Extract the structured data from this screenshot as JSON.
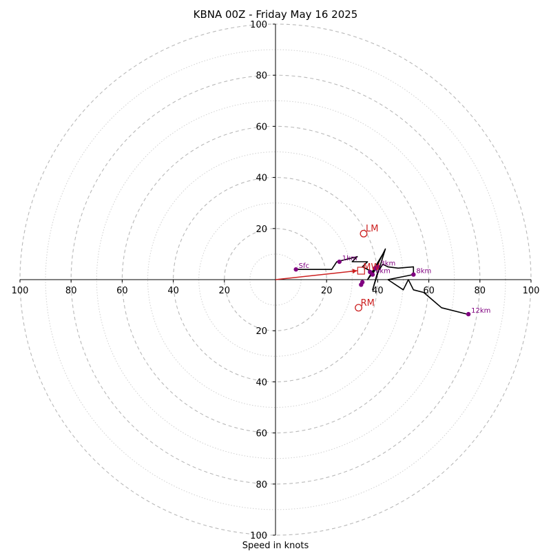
{
  "chart_data": {
    "type": "hodograph",
    "title": "KBNA 00Z - Friday May 16 2025",
    "xlabel": "Speed in knots",
    "range": 100,
    "ring_major_step": 20,
    "ring_minor_step": 10,
    "tick_values": [
      20,
      40,
      60,
      80,
      100
    ],
    "grid": true,
    "hodograph_line": {
      "color": "#000000",
      "points": [
        [
          8,
          4
        ],
        [
          22,
          4
        ],
        [
          24,
          7
        ],
        [
          32,
          9
        ],
        [
          30,
          7
        ],
        [
          36,
          7
        ],
        [
          34,
          5
        ],
        [
          38,
          3
        ],
        [
          40,
          5
        ],
        [
          36,
          0
        ],
        [
          42,
          10
        ],
        [
          38,
          2
        ],
        [
          43,
          12
        ],
        [
          38,
          -4
        ],
        [
          40,
          3
        ],
        [
          42,
          6
        ],
        [
          44,
          5
        ],
        [
          48,
          4.5
        ],
        [
          54,
          5
        ],
        [
          54,
          2
        ],
        [
          44,
          0
        ],
        [
          50,
          -4
        ],
        [
          52,
          0
        ],
        [
          54,
          -4
        ],
        [
          58,
          -5
        ],
        [
          65,
          -11
        ],
        [
          75,
          -13.5
        ]
      ]
    },
    "height_markers": {
      "color": "#800080",
      "points": [
        {
          "label": "Sfc",
          "x": 8,
          "y": 4
        },
        {
          "label": "1km",
          "x": 25,
          "y": 7
        },
        {
          "label": "3km",
          "x": 40,
          "y": 5
        },
        {
          "label": "",
          "x": 39,
          "y": 4.5
        },
        {
          "label": "",
          "x": 37,
          "y": 3
        },
        {
          "label": "6km",
          "x": 38,
          "y": 2
        },
        {
          "label": "",
          "x": 34,
          "y": -1
        },
        {
          "label": "",
          "x": 33.5,
          "y": -2
        },
        {
          "label": "8km",
          "x": 54,
          "y": 2
        },
        {
          "label": "12km",
          "x": 75.5,
          "y": -13.5
        }
      ]
    },
    "storm_motion": {
      "color": "#cc1f1f",
      "left_mover": {
        "label": "LM",
        "x": 34.5,
        "y": 18
      },
      "right_mover": {
        "label": "RM",
        "x": 32.5,
        "y": -11
      },
      "mean_wind": {
        "label": "MW",
        "x": 33.5,
        "y": 3.5
      },
      "shear_vector": {
        "x1": 0,
        "y1": 0,
        "x2": 32,
        "y2": 3.5
      }
    }
  }
}
